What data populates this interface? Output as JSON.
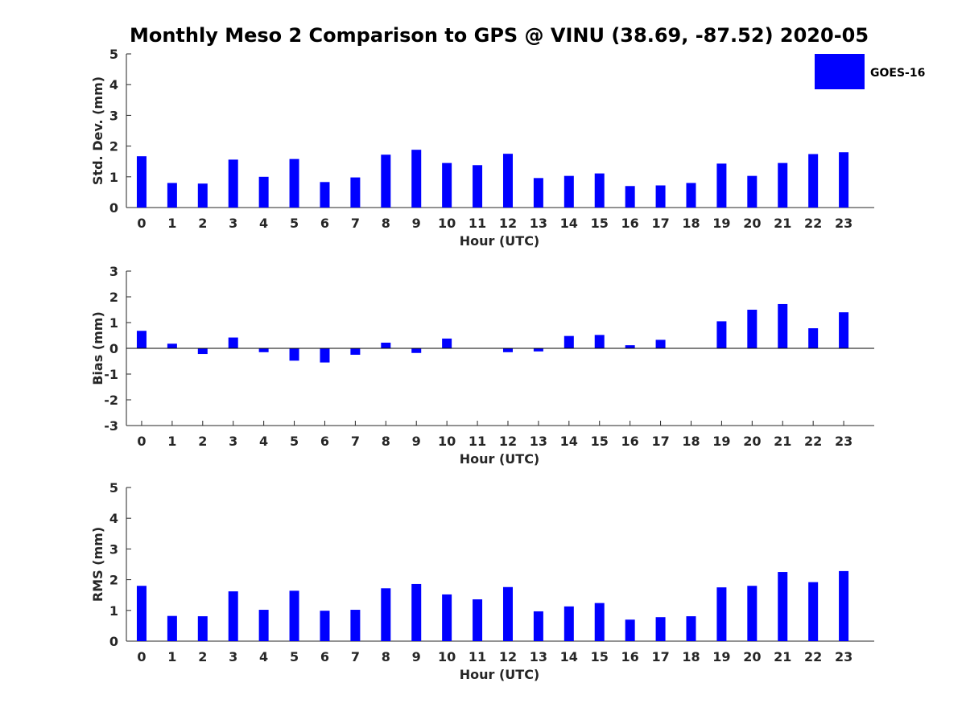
{
  "title": "Monthly Meso 2 Comparison to GPS @ VINU (38.69, -87.52) 2020-05",
  "legend": {
    "label": "GOES-16",
    "color": "#0000ff"
  },
  "chart_data": [
    {
      "type": "bar",
      "name": "stddev",
      "ylabel": "Std. Dev. (mm)",
      "xlabel": "Hour (UTC)",
      "ylim": [
        0,
        5
      ],
      "yticks": [
        0,
        1,
        2,
        3,
        4,
        5
      ],
      "categories": [
        "0",
        "1",
        "2",
        "3",
        "4",
        "5",
        "6",
        "7",
        "8",
        "9",
        "10",
        "11",
        "12",
        "13",
        "14",
        "15",
        "16",
        "17",
        "18",
        "19",
        "20",
        "21",
        "22",
        "23"
      ],
      "series": [
        {
          "name": "GOES-16",
          "color": "#0000ff",
          "values": [
            1.67,
            0.8,
            0.78,
            1.56,
            1.0,
            1.58,
            0.83,
            0.98,
            1.72,
            1.88,
            1.45,
            1.38,
            1.75,
            0.96,
            1.03,
            1.11,
            0.7,
            0.72,
            0.8,
            1.43,
            1.03,
            1.45,
            1.74,
            1.8
          ]
        }
      ]
    },
    {
      "type": "bar",
      "name": "bias",
      "ylabel": "Bias (mm)",
      "xlabel": "Hour (UTC)",
      "ylim": [
        -3,
        3
      ],
      "yticks": [
        -3,
        -2,
        -1,
        0,
        1,
        2,
        3
      ],
      "categories": [
        "0",
        "1",
        "2",
        "3",
        "4",
        "5",
        "6",
        "7",
        "8",
        "9",
        "10",
        "11",
        "12",
        "13",
        "14",
        "15",
        "16",
        "17",
        "18",
        "19",
        "20",
        "21",
        "22",
        "23"
      ],
      "series": [
        {
          "name": "GOES-16",
          "color": "#0000ff",
          "values": [
            0.68,
            0.18,
            -0.22,
            0.42,
            -0.15,
            -0.48,
            -0.55,
            -0.25,
            0.22,
            -0.18,
            0.38,
            0.0,
            -0.15,
            -0.12,
            0.48,
            0.52,
            0.12,
            0.33,
            0.0,
            1.05,
            1.5,
            1.72,
            0.78,
            1.4
          ]
        }
      ]
    },
    {
      "type": "bar",
      "name": "rms",
      "ylabel": "RMS (mm)",
      "xlabel": "Hour (UTC)",
      "ylim": [
        0,
        5
      ],
      "yticks": [
        0,
        1,
        2,
        3,
        4,
        5
      ],
      "categories": [
        "0",
        "1",
        "2",
        "3",
        "4",
        "5",
        "6",
        "7",
        "8",
        "9",
        "10",
        "11",
        "12",
        "13",
        "14",
        "15",
        "16",
        "17",
        "18",
        "19",
        "20",
        "21",
        "22",
        "23"
      ],
      "series": [
        {
          "name": "GOES-16",
          "color": "#0000ff",
          "values": [
            1.8,
            0.82,
            0.81,
            1.62,
            1.02,
            1.64,
            0.99,
            1.02,
            1.72,
            1.86,
            1.52,
            1.36,
            1.76,
            0.97,
            1.13,
            1.24,
            0.7,
            0.78,
            0.81,
            1.75,
            1.8,
            2.25,
            1.92,
            2.28
          ]
        }
      ]
    }
  ]
}
